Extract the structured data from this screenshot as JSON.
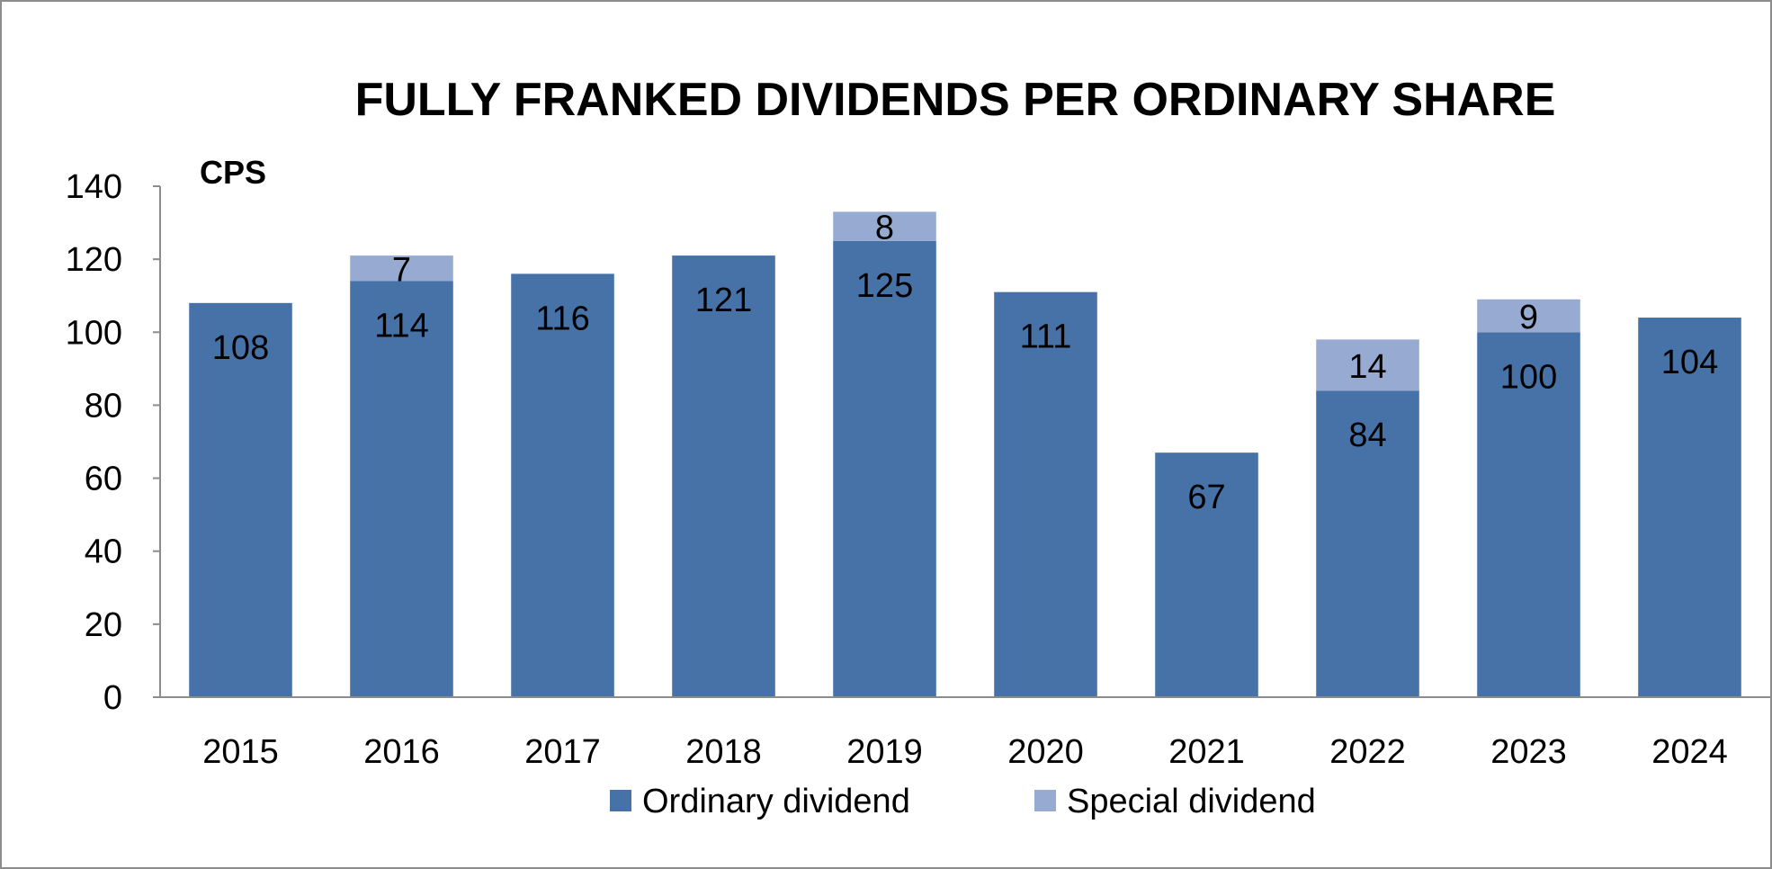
{
  "chart_data": {
    "type": "bar",
    "stacked": true,
    "title": "FULLY FRANKED DIVIDENDS PER ORDINARY SHARE",
    "ylabel": "CPS",
    "xlabel": "",
    "categories": [
      "2015",
      "2016",
      "2017",
      "2018",
      "2019",
      "2020",
      "2021",
      "2022",
      "2023",
      "2024"
    ],
    "series": [
      {
        "name": "Ordinary dividend",
        "color": "#4672A8",
        "values": [
          108,
          114,
          116,
          121,
          125,
          111,
          67,
          84,
          100,
          104
        ],
        "labels": [
          "108",
          "114",
          "116",
          "121",
          "125",
          "111",
          "67",
          "84",
          "100",
          "104"
        ]
      },
      {
        "name": "Special dividend",
        "color": "#97ABD2",
        "values": [
          0,
          7,
          0,
          0,
          8,
          0,
          0,
          14,
          9,
          0
        ],
        "labels": [
          "",
          "7",
          "",
          "",
          "8",
          "",
          "",
          "14",
          "9",
          ""
        ]
      }
    ],
    "ylim": [
      0,
      140
    ],
    "yticks": [
      "0",
      "20",
      "40",
      "60",
      "80",
      "100",
      "120",
      "140"
    ],
    "grid": false,
    "legend": "bottom"
  }
}
